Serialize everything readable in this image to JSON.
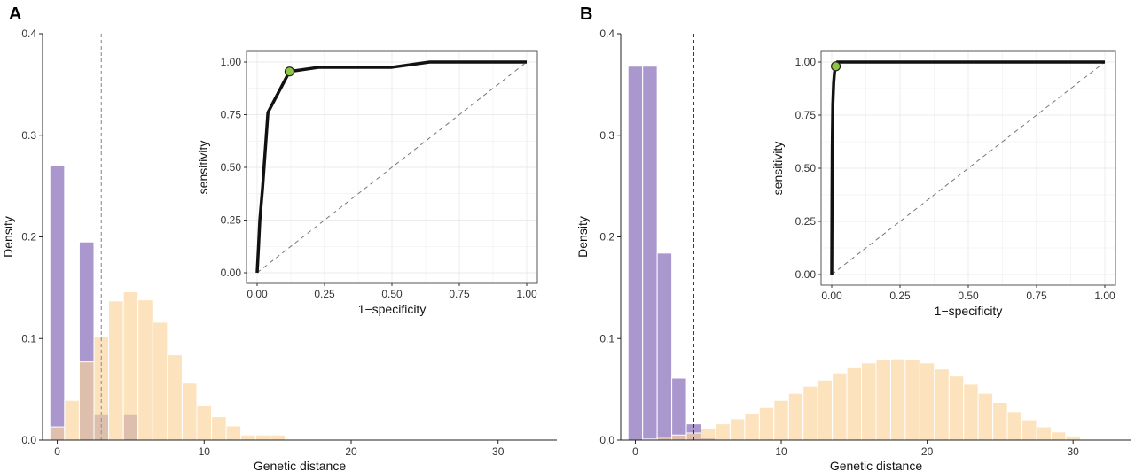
{
  "colors": {
    "purple": "#9b85c6",
    "orange": "#fbd29a",
    "overlap": "#c2899a",
    "roc_line": "#111111",
    "roc_point": "#8dc63f",
    "grid": "#ebebeb"
  },
  "chart_data": [
    {
      "panel": "A",
      "type": "histogram",
      "xlabel": "Genetic distance",
      "ylabel": "Density",
      "xlim": [
        -1,
        34
      ],
      "ylim": [
        0,
        0.4
      ],
      "x_ticks": [
        0,
        10,
        20,
        30
      ],
      "y_ticks": [
        0.0,
        0.1,
        0.2,
        0.3,
        0.4
      ],
      "threshold": 3,
      "threshold_style": "dashed-grey",
      "bins": [
        -0.5,
        0.5,
        1.5,
        2.5,
        3.5,
        4.5,
        5.5,
        6.5,
        7.5,
        8.5,
        9.5,
        10.5,
        11.5,
        12.5,
        13.5,
        14.5,
        15.5
      ],
      "series": [
        {
          "values": [
            0.27,
            0,
            0.195,
            0.025,
            0,
            0.025,
            0,
            0,
            0,
            0,
            0,
            0,
            0,
            0,
            0,
            0
          ]
        },
        {
          "values": [
            0.013,
            0.039,
            0.077,
            0.102,
            0.137,
            0.146,
            0.138,
            0.116,
            0.084,
            0.056,
            0.034,
            0.023,
            0.014,
            0.005,
            0.005,
            0.005
          ]
        }
      ],
      "inset": {
        "type": "line",
        "xlabel": "1−specificity",
        "ylabel": "sensitivity",
        "xlim": [
          0,
          1
        ],
        "ylim": [
          0,
          1
        ],
        "x_ticks": [
          "0.00",
          "0.25",
          "0.50",
          "0.75",
          "1.00"
        ],
        "y_ticks": [
          "0.00",
          "0.25",
          "0.50",
          "0.75",
          "1.00"
        ],
        "grid": true,
        "x": [
          0,
          0.005,
          0.01,
          0.02,
          0.04,
          0.12,
          0.23,
          0.5,
          0.64,
          1.0
        ],
        "y": [
          0,
          0.12,
          0.25,
          0.4,
          0.76,
          0.955,
          0.975,
          0.975,
          1.0,
          1.0
        ],
        "highlight": {
          "x": 0.12,
          "y": 0.955
        }
      }
    },
    {
      "panel": "B",
      "type": "histogram",
      "xlabel": "Genetic distance",
      "ylabel": "Density",
      "xlim": [
        -1,
        34
      ],
      "ylim": [
        0,
        0.4
      ],
      "x_ticks": [
        0,
        10,
        20,
        30
      ],
      "y_ticks": [
        0.0,
        0.1,
        0.2,
        0.3,
        0.4
      ],
      "threshold": 4,
      "threshold_style": "dashed-black",
      "bins": [
        -0.5,
        0.5,
        1.5,
        2.5,
        3.5,
        4.5,
        5.5,
        6.5,
        7.5,
        8.5,
        9.5,
        10.5,
        11.5,
        12.5,
        13.5,
        14.5,
        15.5,
        16.5,
        17.5,
        18.5,
        19.5,
        20.5,
        21.5,
        22.5,
        23.5,
        24.5,
        25.5,
        26.5,
        27.5,
        28.5,
        29.5,
        30.5
      ],
      "series": [
        {
          "values": [
            0.368,
            0.368,
            0.184,
            0.061,
            0.016,
            0.002,
            0,
            0,
            0,
            0,
            0,
            0,
            0,
            0,
            0,
            0,
            0,
            0,
            0,
            0,
            0,
            0,
            0,
            0,
            0,
            0,
            0,
            0,
            0,
            0,
            0
          ]
        },
        {
          "values": [
            0.0,
            0.001,
            0.003,
            0.005,
            0.007,
            0.011,
            0.016,
            0.021,
            0.026,
            0.032,
            0.039,
            0.046,
            0.053,
            0.059,
            0.066,
            0.072,
            0.076,
            0.079,
            0.08,
            0.079,
            0.076,
            0.07,
            0.063,
            0.055,
            0.046,
            0.037,
            0.028,
            0.02,
            0.013,
            0.008,
            0.004
          ]
        }
      ],
      "inset": {
        "type": "line",
        "xlabel": "1−specificity",
        "ylabel": "sensitivity",
        "xlim": [
          0,
          1
        ],
        "ylim": [
          0,
          1
        ],
        "x_ticks": [
          "0.00",
          "0.25",
          "0.50",
          "0.75",
          "1.00"
        ],
        "y_ticks": [
          "0.00",
          "0.25",
          "0.50",
          "0.75",
          "1.00"
        ],
        "grid": true,
        "x": [
          0,
          0.001,
          0.002,
          0.004,
          0.007,
          0.01,
          0.015,
          0.02,
          0.03,
          1.0
        ],
        "y": [
          0,
          0.35,
          0.6,
          0.8,
          0.9,
          0.95,
          0.98,
          1.0,
          1.0,
          1.0
        ],
        "highlight": {
          "x": 0.015,
          "y": 0.98
        }
      }
    }
  ]
}
